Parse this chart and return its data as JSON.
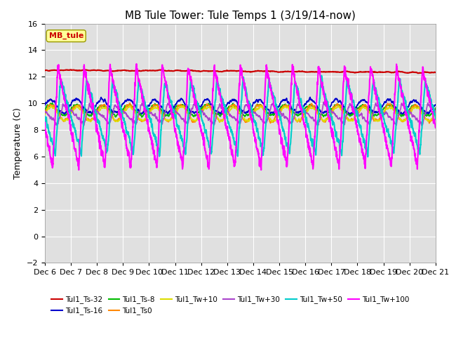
{
  "title": "MB Tule Tower: Tule Temps 1 (3/19/14-now)",
  "ylabel": "Temperature (C)",
  "xlabel": "",
  "legend_box_label": "MB_tule",
  "ylim": [
    -2,
    16
  ],
  "yticks": [
    -2,
    0,
    2,
    4,
    6,
    8,
    10,
    12,
    14,
    16
  ],
  "xtick_labels": [
    "Dec 6",
    "Dec 7",
    "Dec 8",
    "Dec 9",
    "Dec 10",
    "Dec 11",
    "Dec 12",
    "Dec 13",
    "Dec 14",
    "Dec 15",
    "Dec 16",
    "Dec 17",
    "Dec 18",
    "Dec 19",
    "Dec 20",
    "Dec 21"
  ],
  "n_points": 3000,
  "series": [
    {
      "label": "Tul1_Ts-32",
      "color": "#cc0000",
      "lw": 1.5,
      "base": 12.5,
      "trend": -0.18,
      "noise": 0.15,
      "smooth": 40,
      "cycle_amp": 0.0,
      "cycle_phase": 0.0,
      "asym": false
    },
    {
      "label": "Tul1_Ts-16",
      "color": "#0000cc",
      "lw": 1.2,
      "base": 9.8,
      "trend": -0.03,
      "noise": 0.2,
      "smooth": 10,
      "cycle_amp": 0.5,
      "cycle_phase": 0.3,
      "asym": false
    },
    {
      "label": "Tul1_Ts-8",
      "color": "#00bb00",
      "lw": 1.2,
      "base": 9.5,
      "trend": -0.02,
      "noise": 0.15,
      "smooth": 10,
      "cycle_amp": 0.4,
      "cycle_phase": 0.2,
      "asym": false
    },
    {
      "label": "Tul1_Ts0",
      "color": "#ff8800",
      "lw": 1.2,
      "base": 9.3,
      "trend": -0.03,
      "noise": 0.2,
      "smooth": 10,
      "cycle_amp": 0.6,
      "cycle_phase": 0.1,
      "asym": false
    },
    {
      "label": "Tul1_Tw+10",
      "color": "#dddd00",
      "lw": 1.2,
      "base": 9.2,
      "trend": -0.02,
      "noise": 0.15,
      "smooth": 10,
      "cycle_amp": 0.5,
      "cycle_phase": 0.0,
      "asym": false
    },
    {
      "label": "Tul1_Tw+30",
      "color": "#aa44cc",
      "lw": 1.2,
      "base": 9.2,
      "trend": -0.02,
      "noise": 0.2,
      "smooth": 8,
      "cycle_amp": 1.5,
      "cycle_phase": 0.5,
      "asym": true
    },
    {
      "label": "Tul1_Tw+50",
      "color": "#00cccc",
      "lw": 1.5,
      "base": 9.0,
      "trend": -0.02,
      "noise": 0.3,
      "smooth": 5,
      "cycle_amp": 5.5,
      "cycle_phase": 0.6,
      "asym": true
    },
    {
      "label": "Tul1_Tw+100",
      "color": "#ff00ff",
      "lw": 1.5,
      "base": 9.0,
      "trend": -0.02,
      "noise": 0.3,
      "smooth": 3,
      "cycle_amp": 7.5,
      "cycle_phase": 0.7,
      "asym": true
    }
  ],
  "background_color": "#ffffff",
  "plot_bg_color": "#e0e0e0",
  "grid_color": "#ffffff",
  "title_fontsize": 11,
  "label_fontsize": 9,
  "tick_fontsize": 8
}
